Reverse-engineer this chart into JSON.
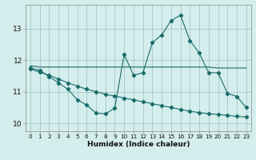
{
  "xlabel": "Humidex (Indice chaleur)",
  "xlim": [
    -0.5,
    23.5
  ],
  "ylim": [
    9.75,
    13.75
  ],
  "xticks": [
    0,
    1,
    2,
    3,
    4,
    5,
    6,
    7,
    8,
    9,
    10,
    11,
    12,
    13,
    14,
    15,
    16,
    17,
    18,
    19,
    20,
    21,
    22,
    23
  ],
  "yticks": [
    10,
    11,
    12,
    13
  ],
  "bg_color": "#d4eded",
  "grid_color": "#9bbfbf",
  "line_color": "#1a6b6b",
  "line1_x": [
    0,
    1,
    2,
    3,
    4,
    5,
    6,
    7,
    8,
    9,
    10,
    11,
    12,
    13,
    14,
    15,
    16,
    17,
    18,
    19,
    20,
    21,
    22,
    23
  ],
  "line1_y": [
    11.75,
    11.68,
    11.48,
    11.28,
    11.08,
    10.75,
    10.58,
    10.32,
    10.3,
    10.48,
    12.18,
    11.52,
    11.6,
    12.55,
    12.8,
    13.25,
    13.42,
    12.62,
    12.22,
    11.6,
    11.6,
    10.95,
    10.85,
    10.5
  ],
  "line2_x": [
    0,
    1,
    2,
    3,
    4,
    5,
    6,
    7,
    8,
    9,
    10,
    11,
    12,
    13,
    14,
    15,
    16,
    17,
    18,
    19,
    20,
    21,
    22,
    23
  ],
  "line2_y": [
    11.82,
    11.78,
    11.78,
    11.78,
    11.78,
    11.78,
    11.78,
    11.78,
    11.78,
    11.78,
    11.78,
    11.78,
    11.78,
    11.78,
    11.78,
    11.78,
    11.78,
    11.78,
    11.78,
    11.78,
    11.75,
    11.75,
    11.75,
    11.75
  ],
  "line3_x": [
    0,
    1,
    2,
    3,
    4,
    5,
    6,
    7,
    8,
    9,
    10,
    11,
    12,
    13,
    14,
    15,
    16,
    17,
    18,
    19,
    20,
    21,
    22,
    23
  ],
  "line3_y": [
    11.72,
    11.62,
    11.52,
    11.4,
    11.28,
    11.18,
    11.08,
    11.0,
    10.92,
    10.86,
    10.8,
    10.74,
    10.68,
    10.62,
    10.56,
    10.5,
    10.44,
    10.38,
    10.34,
    10.3,
    10.28,
    10.25,
    10.22,
    10.2
  ]
}
